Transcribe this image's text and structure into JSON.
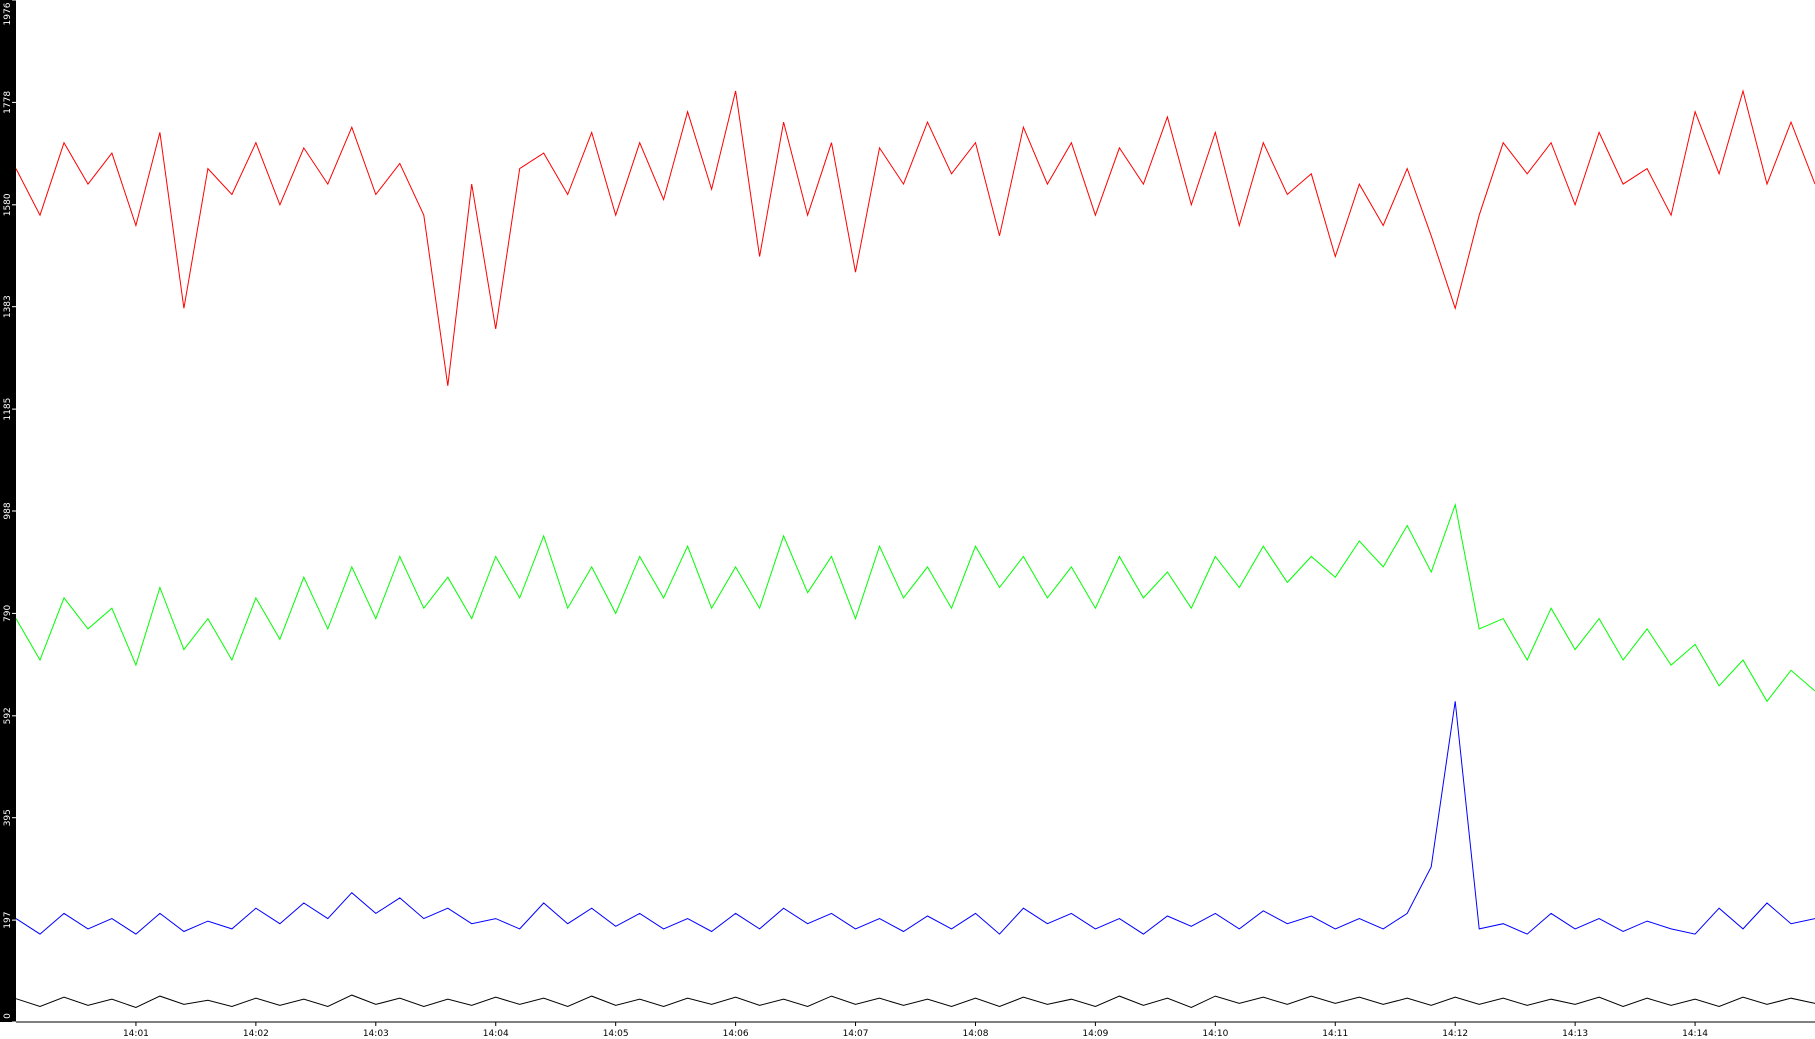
{
  "chart_data": {
    "type": "line",
    "ylim": [
      0,
      1976
    ],
    "yticks": [
      0,
      197,
      395,
      592,
      790,
      988,
      1185,
      1383,
      1580,
      1778,
      1976
    ],
    "xlim": [
      840,
      855
    ],
    "xticks": [
      {
        "value": 841,
        "label": "14:01"
      },
      {
        "value": 842,
        "label": "14:02"
      },
      {
        "value": 843,
        "label": "14:03"
      },
      {
        "value": 844,
        "label": "14:04"
      },
      {
        "value": 845,
        "label": "14:05"
      },
      {
        "value": 846,
        "label": "14:06"
      },
      {
        "value": 847,
        "label": "14:07"
      },
      {
        "value": 848,
        "label": "14:08"
      },
      {
        "value": 849,
        "label": "14:09"
      },
      {
        "value": 850,
        "label": "14:10"
      },
      {
        "value": 851,
        "label": "14:11"
      },
      {
        "value": 852,
        "label": "14:12"
      },
      {
        "value": 853,
        "label": "14:13"
      },
      {
        "value": 854,
        "label": "14:14"
      }
    ],
    "x": [
      840,
      840.2,
      840.4,
      840.6,
      840.8,
      841,
      841.2,
      841.4,
      841.6,
      841.8,
      842,
      842.2,
      842.4,
      842.6,
      842.8,
      843,
      843.2,
      843.4,
      843.6,
      843.8,
      844,
      844.2,
      844.4,
      844.6,
      844.8,
      845,
      845.2,
      845.4,
      845.6,
      845.8,
      846,
      846.2,
      846.4,
      846.6,
      846.8,
      847,
      847.2,
      847.4,
      847.6,
      847.8,
      848,
      848.2,
      848.4,
      848.6,
      848.8,
      849,
      849.2,
      849.4,
      849.6,
      849.8,
      850,
      850.2,
      850.4,
      850.6,
      850.8,
      851,
      851.2,
      851.4,
      851.6,
      851.8,
      852,
      852.2,
      852.4,
      852.6,
      852.8,
      853,
      853.2,
      853.4,
      853.6,
      853.8,
      854,
      854.2,
      854.4,
      854.6,
      854.8,
      855
    ],
    "series": [
      {
        "color": "#ff0000",
        "values": [
          1650,
          1560,
          1700,
          1620,
          1680,
          1540,
          1720,
          1380,
          1650,
          1600,
          1700,
          1580,
          1690,
          1620,
          1730,
          1600,
          1660,
          1560,
          1230,
          1620,
          1340,
          1650,
          1680,
          1600,
          1720,
          1560,
          1700,
          1590,
          1760,
          1610,
          1800,
          1480,
          1740,
          1560,
          1700,
          1450,
          1690,
          1620,
          1740,
          1640,
          1700,
          1520,
          1730,
          1620,
          1700,
          1560,
          1690,
          1620,
          1750,
          1580,
          1720,
          1540,
          1700,
          1600,
          1640,
          1480,
          1620,
          1540,
          1650,
          1520,
          1380,
          1560,
          1700,
          1640,
          1700,
          1580,
          1720,
          1620,
          1650,
          1560,
          1760,
          1640,
          1800,
          1620,
          1740,
          1620
        ]
      },
      {
        "color": "#00ff00",
        "values": [
          780,
          700,
          820,
          760,
          800,
          690,
          840,
          720,
          780,
          700,
          820,
          740,
          860,
          760,
          880,
          780,
          900,
          800,
          860,
          780,
          900,
          820,
          940,
          800,
          880,
          790,
          900,
          820,
          920,
          800,
          880,
          800,
          940,
          830,
          900,
          780,
          920,
          820,
          880,
          800,
          920,
          840,
          900,
          820,
          880,
          800,
          900,
          820,
          870,
          800,
          900,
          840,
          920,
          850,
          900,
          860,
          930,
          880,
          960,
          870,
          1000,
          760,
          780,
          700,
          800,
          720,
          780,
          700,
          760,
          690,
          730,
          650,
          700,
          620,
          680,
          640
        ]
      },
      {
        "color": "#0000ff",
        "values": [
          200,
          170,
          210,
          180,
          200,
          170,
          210,
          175,
          195,
          180,
          220,
          190,
          230,
          200,
          250,
          210,
          240,
          200,
          220,
          190,
          200,
          180,
          230,
          190,
          220,
          185,
          210,
          180,
          200,
          175,
          210,
          180,
          220,
          190,
          210,
          180,
          200,
          175,
          205,
          180,
          210,
          170,
          220,
          190,
          210,
          180,
          200,
          170,
          205,
          185,
          210,
          180,
          215,
          190,
          205,
          180,
          200,
          180,
          210,
          300,
          620,
          180,
          190,
          170,
          210,
          180,
          200,
          175,
          195,
          180,
          170,
          220,
          180,
          230,
          190,
          200
        ]
      },
      {
        "color": "#000000",
        "values": [
          45,
          30,
          48,
          32,
          44,
          28,
          50,
          34,
          42,
          30,
          46,
          32,
          44,
          30,
          52,
          34,
          46,
          30,
          44,
          32,
          48,
          34,
          46,
          30,
          50,
          32,
          44,
          30,
          46,
          34,
          48,
          32,
          44,
          30,
          50,
          34,
          46,
          32,
          44,
          30,
          46,
          30,
          48,
          34,
          44,
          30,
          50,
          32,
          46,
          28,
          50,
          36,
          48,
          34,
          50,
          36,
          48,
          34,
          46,
          32,
          48,
          34,
          46,
          32,
          44,
          34,
          48,
          30,
          46,
          32,
          44,
          30,
          48,
          34,
          46,
          36
        ]
      }
    ]
  }
}
